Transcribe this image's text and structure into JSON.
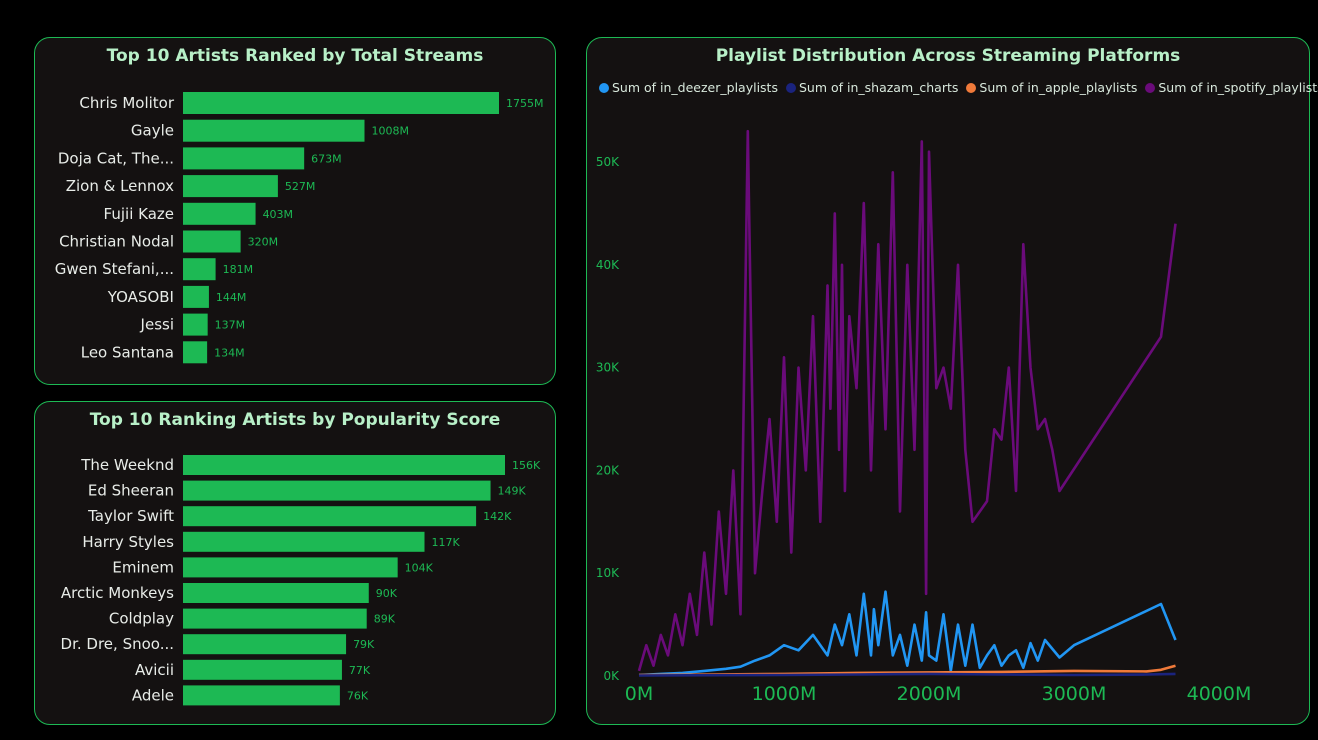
{
  "chart_data": [
    {
      "type": "bar",
      "orientation": "horizontal",
      "title": "Top 10 Artists Ranked by Total Streams",
      "categories": [
        "Chris Molitor",
        "Gayle",
        "Doja Cat, The...",
        "Zion & Lennox",
        "Fujii Kaze",
        "Christian Nodal",
        "Gwen Stefani,...",
        "YOASOBI",
        "Jessi",
        "Leo Santana"
      ],
      "values": [
        1755,
        1008,
        673,
        527,
        403,
        320,
        181,
        144,
        137,
        134
      ],
      "value_labels": [
        "1755M",
        "1008M",
        "673M",
        "527M",
        "403M",
        "320M",
        "181M",
        "144M",
        "137M",
        "134M"
      ],
      "color": "#1DB954"
    },
    {
      "type": "bar",
      "orientation": "horizontal",
      "title": "Top 10 Ranking Artists by Popularity Score",
      "categories": [
        "The Weeknd",
        "Ed Sheeran",
        "Taylor Swift",
        "Harry Styles",
        "Eminem",
        "Arctic Monkeys",
        "Coldplay",
        "Dr. Dre, Snoo...",
        "Avicii",
        "Adele"
      ],
      "values": [
        156,
        149,
        142,
        117,
        104,
        90,
        89,
        79,
        77,
        76
      ],
      "value_labels": [
        "156K",
        "149K",
        "142K",
        "117K",
        "104K",
        "90K",
        "89K",
        "79K",
        "77K",
        "76K"
      ],
      "color": "#1DB954"
    },
    {
      "type": "line",
      "title": "Playlist Distribution Across Streaming Platforms",
      "legend_position": "top",
      "xlim": [
        0,
        4000
      ],
      "ylim": [
        0,
        55000
      ],
      "x_ticks": [
        "0M",
        "1000M",
        "2000M",
        "3000M",
        "4000M"
      ],
      "x_tick_values": [
        0,
        1000,
        2000,
        3000,
        4000
      ],
      "y_ticks": [
        "0K",
        "10K",
        "20K",
        "30K",
        "40K",
        "50K"
      ],
      "y_tick_values": [
        0,
        10000,
        20000,
        30000,
        40000,
        50000
      ],
      "series": [
        {
          "name": "Sum of in_deezer_playlists",
          "color": "#2196F3",
          "x": [
            0,
            150,
            300,
            450,
            600,
            700,
            800,
            900,
            1000,
            1100,
            1200,
            1300,
            1350,
            1400,
            1450,
            1500,
            1550,
            1600,
            1620,
            1650,
            1700,
            1750,
            1800,
            1850,
            1900,
            1950,
            1980,
            2000,
            2050,
            2100,
            2150,
            2200,
            2250,
            2300,
            2350,
            2400,
            2450,
            2500,
            2550,
            2600,
            2650,
            2700,
            2750,
            2800,
            2900,
            3000,
            3600,
            3700
          ],
          "y": [
            100,
            200,
            300,
            500,
            700,
            900,
            1500,
            2000,
            3000,
            2500,
            4000,
            2000,
            5000,
            3000,
            6000,
            2000,
            8000,
            2000,
            6500,
            3000,
            8200,
            2000,
            4000,
            1000,
            5000,
            1500,
            6200,
            2000,
            1500,
            6000,
            500,
            5000,
            1000,
            5000,
            800,
            2000,
            3000,
            1000,
            2000,
            2500,
            800,
            3200,
            1500,
            3500,
            1800,
            3000,
            7000,
            3500
          ]
        },
        {
          "name": "Sum of in_shazam_charts",
          "color": "#1A237E",
          "x": [
            0,
            500,
            1000,
            1500,
            2000,
            2500,
            3000,
            3500,
            3700
          ],
          "y": [
            50,
            80,
            100,
            150,
            200,
            150,
            100,
            150,
            200
          ]
        },
        {
          "name": "Sum of in_apple_playlists",
          "color": "#F07A3A",
          "x": [
            0,
            500,
            1000,
            1500,
            2000,
            2500,
            3000,
            3500,
            3600,
            3700
          ],
          "y": [
            100,
            150,
            200,
            300,
            350,
            400,
            500,
            450,
            600,
            1000
          ]
        },
        {
          "name": "Sum of in_spotify_playlists",
          "color": "#6A0B7A",
          "x": [
            0,
            50,
            100,
            150,
            200,
            250,
            300,
            350,
            400,
            450,
            500,
            550,
            600,
            650,
            700,
            750,
            800,
            850,
            900,
            950,
            1000,
            1050,
            1100,
            1150,
            1200,
            1250,
            1300,
            1320,
            1350,
            1380,
            1400,
            1420,
            1450,
            1500,
            1550,
            1600,
            1650,
            1700,
            1750,
            1800,
            1850,
            1900,
            1950,
            1980,
            2000,
            2050,
            2100,
            2150,
            2200,
            2250,
            2300,
            2350,
            2400,
            2450,
            2500,
            2550,
            2600,
            2650,
            2700,
            2750,
            2800,
            2850,
            2900,
            3600,
            3700
          ],
          "y": [
            500,
            3000,
            1000,
            4000,
            2000,
            6000,
            3000,
            8000,
            4000,
            12000,
            5000,
            16000,
            8000,
            20000,
            6000,
            53000,
            10000,
            18000,
            25000,
            15000,
            31000,
            12000,
            30000,
            20000,
            35000,
            15000,
            38000,
            26000,
            45000,
            22000,
            40000,
            18000,
            35000,
            28000,
            46000,
            20000,
            42000,
            24000,
            49000,
            16000,
            40000,
            22000,
            52000,
            8000,
            51000,
            28000,
            30000,
            26000,
            40000,
            22000,
            15000,
            16000,
            17000,
            24000,
            23000,
            30000,
            18000,
            42000,
            30000,
            24000,
            25000,
            22000,
            18000,
            33000,
            44000
          ]
        }
      ]
    }
  ]
}
